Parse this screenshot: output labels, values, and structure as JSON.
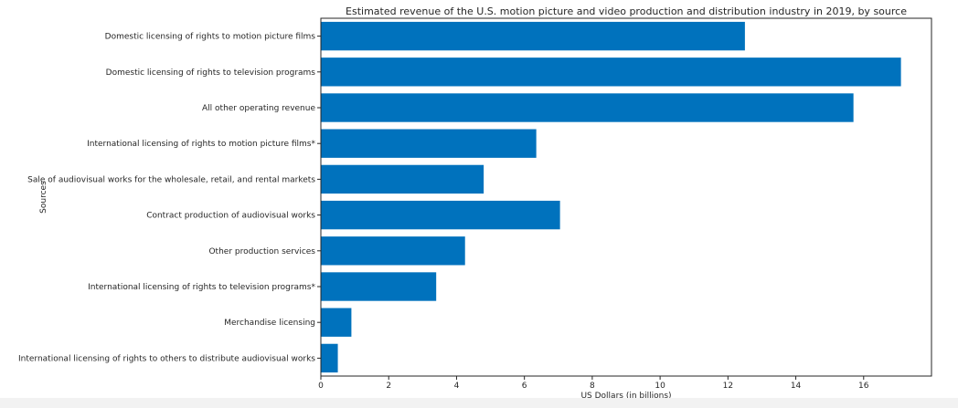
{
  "chart_data": {
    "type": "bar",
    "orientation": "horizontal",
    "title": "Estimated revenue of the U.S. motion picture and video production and distribution industry in 2019, by source",
    "xlabel": "US Dollars (in billions)",
    "ylabel": "Sources",
    "xlim": [
      0,
      18
    ],
    "xticks": [
      0,
      2,
      4,
      6,
      8,
      10,
      12,
      14,
      16
    ],
    "categories": [
      "Domestic licensing of rights to motion picture films",
      "Domestic licensing of rights to television programs",
      "All other operating revenue",
      "International licensing of rights to motion picture films*",
      "Sale of audiovisual works for the wholesale, retail, and rental markets",
      "Contract production of audiovisual works",
      "Other production services",
      "International licensing of rights to television programs*",
      "Merchandise licensing",
      "International licensing of rights to others to distribute audiovisual works"
    ],
    "values": [
      12.5,
      17.1,
      15.7,
      6.35,
      4.8,
      7.05,
      4.25,
      3.4,
      0.9,
      0.5
    ],
    "bar_color": "#0072bd",
    "grid": false,
    "legend": "none"
  }
}
